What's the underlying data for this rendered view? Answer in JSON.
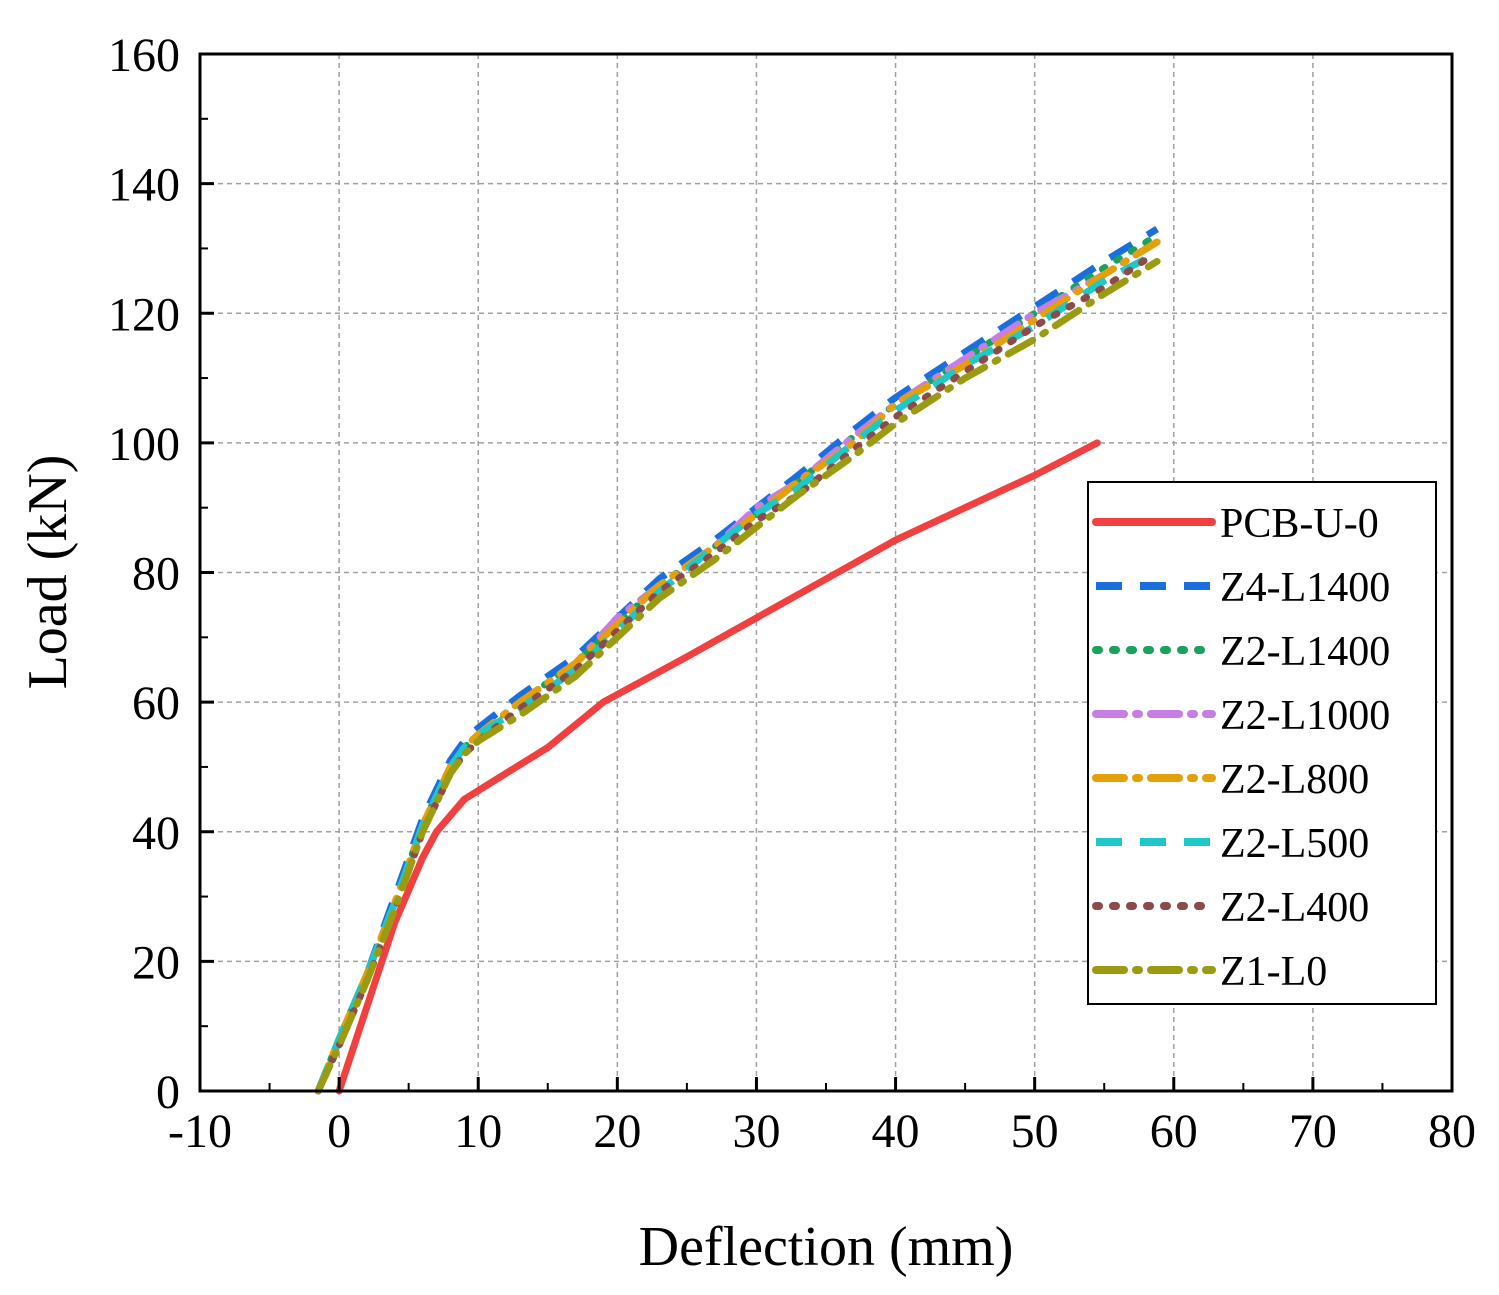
{
  "chart_data": {
    "type": "line",
    "title": "",
    "xlabel": "Deflection (mm)",
    "ylabel": "Load (kN)",
    "xlim": [
      -10,
      80
    ],
    "ylim": [
      0,
      160
    ],
    "xticks": [
      -10,
      0,
      10,
      20,
      30,
      40,
      50,
      60,
      70,
      80
    ],
    "yticks": [
      0,
      20,
      40,
      60,
      80,
      100,
      120,
      140,
      160
    ],
    "xtick_labels": [
      "-10",
      "0",
      "10",
      "20",
      "30",
      "40",
      "50",
      "60",
      "70",
      "80"
    ],
    "ytick_labels": [
      "0",
      "20",
      "40",
      "60",
      "80",
      "100",
      "120",
      "140",
      "160"
    ],
    "grid": true,
    "legend_position": "right",
    "series": [
      {
        "name": "PCB-U-0",
        "color": "#f24040",
        "dash": "solid",
        "x": [
          0,
          2,
          4,
          6,
          7,
          9,
          12,
          15,
          19,
          25,
          30,
          35,
          40,
          45,
          50,
          54.5
        ],
        "y": [
          0,
          13,
          26,
          36,
          40,
          45,
          49,
          53,
          60,
          67,
          73,
          79,
          85,
          90,
          95,
          100
        ]
      },
      {
        "name": "Z4-L1400",
        "color": "#1a6fdf",
        "dash": "dash",
        "x": [
          -1.5,
          0,
          2,
          4,
          6,
          8,
          9,
          10,
          13,
          17,
          20,
          23,
          27,
          30,
          33,
          37,
          40,
          45,
          50,
          55,
          58.8
        ],
        "y": [
          0,
          8,
          18,
          30,
          42,
          51,
          54,
          56,
          61,
          67,
          73,
          79,
          85,
          90,
          95,
          102,
          107,
          114,
          121,
          128,
          133
        ]
      },
      {
        "name": "Z2-L1400",
        "color": "#19a25a",
        "dash": "dot",
        "x": [
          -1.5,
          0,
          2,
          4,
          6,
          8,
          9,
          10,
          13,
          17,
          20,
          23,
          27,
          30,
          33,
          37,
          40,
          45,
          50,
          55,
          58.8
        ],
        "y": [
          0,
          8,
          18,
          29,
          41,
          50,
          53,
          55,
          60,
          66,
          72,
          78,
          84,
          89,
          94,
          101,
          106,
          113,
          120,
          127,
          132
        ]
      },
      {
        "name": "Z2-L1000",
        "color": "#c77ce6",
        "dash": "dashdot",
        "x": [
          -1.5,
          0,
          2,
          4,
          6,
          8,
          9,
          10,
          13,
          17,
          20,
          23,
          27,
          30,
          33,
          37,
          40,
          45,
          50,
          55,
          58.8
        ],
        "y": [
          0,
          8,
          18,
          29,
          41,
          50,
          53,
          55,
          60,
          66,
          73,
          78,
          84,
          90,
          94,
          101,
          106,
          113,
          120,
          126,
          131
        ]
      },
      {
        "name": "Z2-L800",
        "color": "#e3a008",
        "dash": "dashdot",
        "x": [
          -1.5,
          0,
          2,
          4,
          6,
          8,
          9,
          10,
          13,
          17,
          20,
          23,
          27,
          30,
          33,
          37,
          40,
          45,
          50,
          55,
          58.8
        ],
        "y": [
          0,
          8,
          18,
          29,
          41,
          50,
          53,
          55,
          60,
          66,
          72,
          78,
          84,
          89,
          94,
          100,
          106,
          112,
          119,
          126,
          131
        ]
      },
      {
        "name": "Z2-L500",
        "color": "#1ec8c8",
        "dash": "dash",
        "x": [
          -1.5,
          0,
          2,
          4,
          6,
          8,
          9,
          10,
          13,
          17,
          20,
          23,
          27,
          30,
          33,
          37,
          40,
          45,
          50,
          55,
          58.5
        ],
        "y": [
          0,
          8,
          18,
          29,
          41,
          50,
          53,
          55,
          59,
          65,
          71,
          77,
          84,
          89,
          93,
          100,
          105,
          112,
          118,
          125,
          129
        ]
      },
      {
        "name": "Z2-L400",
        "color": "#8c4a4a",
        "dash": "dot",
        "x": [
          -1.5,
          0,
          2,
          4,
          6,
          8,
          9,
          10,
          13,
          17,
          20,
          23,
          27,
          30,
          33,
          37,
          40,
          45,
          50,
          55,
          58.5
        ],
        "y": [
          0,
          7,
          17,
          28,
          40,
          49,
          52,
          54,
          59,
          65,
          71,
          77,
          83,
          88,
          92,
          99,
          104,
          111,
          118,
          124,
          129
        ]
      },
      {
        "name": "Z1-L0",
        "color": "#9b9b12",
        "dash": "dashdot",
        "x": [
          -1.5,
          0,
          2,
          4,
          6,
          8,
          9,
          10,
          13,
          17,
          20,
          23,
          27,
          30,
          33,
          37,
          40,
          45,
          50,
          55,
          58.8
        ],
        "y": [
          0,
          7,
          17,
          28,
          40,
          49,
          52,
          54,
          58,
          64,
          70,
          76,
          82,
          87,
          92,
          98,
          103,
          110,
          116,
          123,
          128
        ]
      }
    ]
  }
}
